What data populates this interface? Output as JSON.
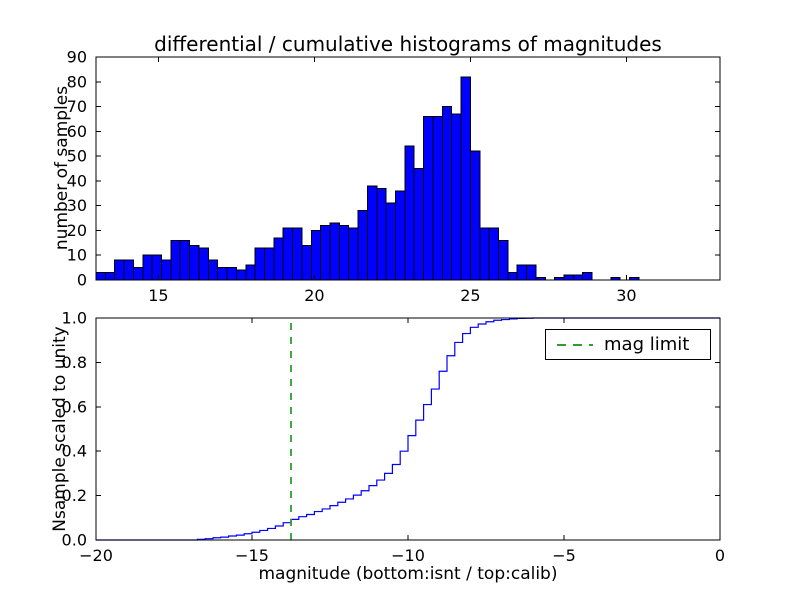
{
  "title": "differential / cumulative histograms of magnitudes",
  "colors": {
    "background": "#ffffff",
    "axis": "#000000",
    "bar_fill": "#0000ff",
    "bar_edge": "#000000",
    "step_line": "#0000ff",
    "mag_limit_line": "#2ca02c"
  },
  "chart_data": [
    {
      "type": "bar",
      "subplot": "top",
      "ylabel": "number of samples",
      "xlim": [
        13,
        33
      ],
      "ylim": [
        0,
        90
      ],
      "xticks": [
        15,
        20,
        25,
        30
      ],
      "yticks": [
        0,
        10,
        20,
        30,
        40,
        50,
        60,
        70,
        80,
        90
      ],
      "grid": false,
      "bin_start": 13.0,
      "bin_width": 0.3,
      "counts": [
        3,
        3,
        8,
        8,
        5,
        10,
        10,
        8,
        16,
        16,
        14,
        13,
        8,
        5,
        5,
        4,
        6,
        13,
        13,
        17,
        21,
        21,
        14,
        20,
        22,
        23,
        22,
        21,
        28,
        38,
        37,
        31,
        36,
        54,
        45,
        66,
        66,
        70,
        67,
        82,
        52,
        21,
        21,
        16,
        3,
        6,
        6,
        1,
        0,
        1,
        2,
        2,
        3,
        0,
        0,
        1,
        0,
        1
      ]
    },
    {
      "type": "line",
      "subplot": "bottom",
      "style": "cumulative step",
      "ylabel": "Nsample scaled to unity",
      "xlabel": "magnitude (bottom:isnt / top:calib)",
      "xlim": [
        -20,
        0
      ],
      "ylim": [
        0,
        1
      ],
      "xticks": [
        -20,
        -15,
        -10,
        -5,
        0
      ],
      "yticks": [
        "0.0",
        "0.2",
        "0.4",
        "0.6",
        "0.8",
        "1.0"
      ],
      "grid": false,
      "legend": {
        "label": "mag limit",
        "position": "upper right"
      },
      "mag_limit": {
        "x": -13.75
      },
      "cumulative_points": [
        [
          -20,
          0
        ],
        [
          -17,
          0
        ],
        [
          -16.75,
          0.003
        ],
        [
          -16.5,
          0.006
        ],
        [
          -16.25,
          0.01
        ],
        [
          -16,
          0.013
        ],
        [
          -15.75,
          0.018
        ],
        [
          -15.5,
          0.022
        ],
        [
          -15.25,
          0.028
        ],
        [
          -15,
          0.035
        ],
        [
          -14.75,
          0.043
        ],
        [
          -14.5,
          0.052
        ],
        [
          -14.25,
          0.063
        ],
        [
          -14,
          0.078
        ],
        [
          -13.75,
          0.093
        ],
        [
          -13.5,
          0.105
        ],
        [
          -13.25,
          0.115
        ],
        [
          -13,
          0.128
        ],
        [
          -12.75,
          0.14
        ],
        [
          -12.5,
          0.155
        ],
        [
          -12.25,
          0.17
        ],
        [
          -12,
          0.185
        ],
        [
          -11.75,
          0.202
        ],
        [
          -11.5,
          0.222
        ],
        [
          -11.25,
          0.245
        ],
        [
          -11,
          0.27
        ],
        [
          -10.75,
          0.3
        ],
        [
          -10.5,
          0.34
        ],
        [
          -10.25,
          0.4
        ],
        [
          -10,
          0.47
        ],
        [
          -9.75,
          0.54
        ],
        [
          -9.5,
          0.61
        ],
        [
          -9.25,
          0.68
        ],
        [
          -9,
          0.76
        ],
        [
          -8.75,
          0.83
        ],
        [
          -8.5,
          0.89
        ],
        [
          -8.25,
          0.93
        ],
        [
          -8,
          0.958
        ],
        [
          -7.75,
          0.973
        ],
        [
          -7.5,
          0.983
        ],
        [
          -7.25,
          0.99
        ],
        [
          -7,
          0.993
        ],
        [
          -6.75,
          0.996
        ],
        [
          -6.5,
          0.998
        ],
        [
          -6.25,
          0.999
        ],
        [
          -6,
          1.0
        ],
        [
          0,
          1.0
        ]
      ]
    }
  ]
}
